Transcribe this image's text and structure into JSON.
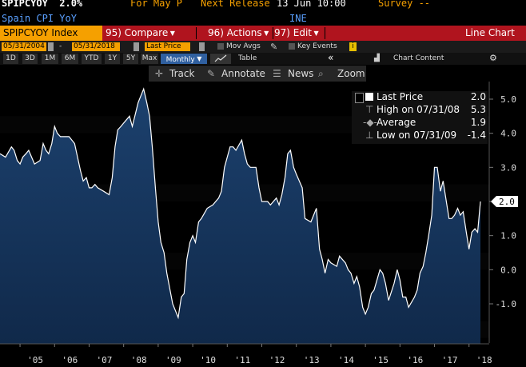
{
  "header": {
    "ticker": "SPIPCYOY",
    "last_value": "2.0%",
    "for_label": "For May P",
    "next_release_label": "Next Release",
    "next_release_date": "13 Jun 10:00",
    "survey_label": "Survey --",
    "name": "Spain CPI YoY",
    "source": "INE"
  },
  "function_bar": {
    "security": "SPIPCYOY Index",
    "compare": "95) Compare",
    "actions": "96) Actions",
    "edit": "97) Edit",
    "chart_type": "Line Chart"
  },
  "date_bar": {
    "start_date": "05/31/2004",
    "dash": "-",
    "end_date": "05/31/2018",
    "field": "Last Price",
    "mov_avgs": "Mov Avgs",
    "key_events": "Key Events"
  },
  "period_bar": {
    "periods": [
      "1D",
      "3D",
      "1M",
      "6M",
      "YTD",
      "1Y",
      "5Y",
      "Max"
    ],
    "frequency": "Monthly",
    "table": "Table",
    "collapse": "«",
    "chart_content": "Chart Content",
    "settings_icon": "gear-icon"
  },
  "toolbar": {
    "track": "Track",
    "annotate": "Annotate",
    "news": "News",
    "zoom": "Zoom"
  },
  "legend": {
    "rows": [
      {
        "name": "Last Price",
        "value": "2.0"
      },
      {
        "name": "High on 07/31/08",
        "value": "5.3"
      },
      {
        "name": "Average",
        "value": "1.9"
      },
      {
        "name": "Low on 07/31/09",
        "value": "-1.4"
      }
    ]
  },
  "colors": {
    "accent": "#f5a000",
    "function_bar": "#b0141e",
    "series_line": "#ffffff",
    "area_fill": "#15365f"
  },
  "chart_data": {
    "type": "area",
    "x_ticks": [
      "'05",
      "'06",
      "'07",
      "'08",
      "'09",
      "'10",
      "'11",
      "'12",
      "'13",
      "'14",
      "'15",
      "'16",
      "'17",
      "'18"
    ],
    "y_ticks": [
      "5.0",
      "4.0",
      "3.0",
      "2.0",
      "1.0",
      "0.0",
      "-1.0"
    ],
    "ylim": [
      -2.0,
      5.6
    ],
    "last_value_label": "2.0",
    "grid": false,
    "series": [
      {
        "values": [
          [
            2004.42,
            3.4
          ],
          [
            2004.58,
            3.3
          ],
          [
            2004.75,
            3.6
          ],
          [
            2004.83,
            3.5
          ],
          [
            2004.92,
            3.2
          ],
          [
            2005.0,
            3.1
          ],
          [
            2005.08,
            3.3
          ],
          [
            2005.17,
            3.4
          ],
          [
            2005.25,
            3.5
          ],
          [
            2005.42,
            3.1
          ],
          [
            2005.58,
            3.2
          ],
          [
            2005.67,
            3.7
          ],
          [
            2005.75,
            3.5
          ],
          [
            2005.83,
            3.4
          ],
          [
            2005.92,
            3.7
          ],
          [
            2006.0,
            4.2
          ],
          [
            2006.08,
            4.0
          ],
          [
            2006.17,
            3.9
          ],
          [
            2006.25,
            3.9
          ],
          [
            2006.42,
            3.9
          ],
          [
            2006.58,
            3.7
          ],
          [
            2006.75,
            2.9
          ],
          [
            2006.83,
            2.6
          ],
          [
            2006.92,
            2.7
          ],
          [
            2007.0,
            2.4
          ],
          [
            2007.08,
            2.4
          ],
          [
            2007.17,
            2.5
          ],
          [
            2007.25,
            2.4
          ],
          [
            2007.42,
            2.3
          ],
          [
            2007.58,
            2.2
          ],
          [
            2007.67,
            2.7
          ],
          [
            2007.75,
            3.6
          ],
          [
            2007.83,
            4.1
          ],
          [
            2007.92,
            4.2
          ],
          [
            2008.0,
            4.3
          ],
          [
            2008.17,
            4.5
          ],
          [
            2008.25,
            4.2
          ],
          [
            2008.42,
            4.9
          ],
          [
            2008.58,
            5.3
          ],
          [
            2008.67,
            4.9
          ],
          [
            2008.75,
            4.5
          ],
          [
            2008.83,
            3.6
          ],
          [
            2008.92,
            2.4
          ],
          [
            2009.0,
            1.4
          ],
          [
            2009.08,
            0.8
          ],
          [
            2009.17,
            0.5
          ],
          [
            2009.25,
            -0.1
          ],
          [
            2009.42,
            -1.0
          ],
          [
            2009.58,
            -1.4
          ],
          [
            2009.67,
            -0.8
          ],
          [
            2009.75,
            -0.7
          ],
          [
            2009.83,
            0.3
          ],
          [
            2009.92,
            0.8
          ],
          [
            2010.0,
            1.0
          ],
          [
            2010.08,
            0.8
          ],
          [
            2010.17,
            1.4
          ],
          [
            2010.25,
            1.5
          ],
          [
            2010.42,
            1.8
          ],
          [
            2010.58,
            1.9
          ],
          [
            2010.75,
            2.1
          ],
          [
            2010.83,
            2.3
          ],
          [
            2010.92,
            3.0
          ],
          [
            2011.0,
            3.3
          ],
          [
            2011.08,
            3.6
          ],
          [
            2011.17,
            3.6
          ],
          [
            2011.25,
            3.5
          ],
          [
            2011.42,
            3.8
          ],
          [
            2011.5,
            3.4
          ],
          [
            2011.58,
            3.1
          ],
          [
            2011.67,
            3.0
          ],
          [
            2011.83,
            3.0
          ],
          [
            2011.92,
            2.4
          ],
          [
            2012.0,
            2.0
          ],
          [
            2012.17,
            2.0
          ],
          [
            2012.25,
            1.9
          ],
          [
            2012.42,
            2.1
          ],
          [
            2012.5,
            1.9
          ],
          [
            2012.58,
            2.2
          ],
          [
            2012.67,
            2.7
          ],
          [
            2012.75,
            3.4
          ],
          [
            2012.83,
            3.5
          ],
          [
            2012.92,
            3.0
          ],
          [
            2013.0,
            2.8
          ],
          [
            2013.17,
            2.4
          ],
          [
            2013.25,
            1.5
          ],
          [
            2013.42,
            1.4
          ],
          [
            2013.58,
            1.8
          ],
          [
            2013.67,
            0.6
          ],
          [
            2013.75,
            0.3
          ],
          [
            2013.83,
            -0.1
          ],
          [
            2013.92,
            0.3
          ],
          [
            2014.0,
            0.2
          ],
          [
            2014.17,
            0.1
          ],
          [
            2014.25,
            0.4
          ],
          [
            2014.42,
            0.2
          ],
          [
            2014.5,
            0.0
          ],
          [
            2014.58,
            -0.1
          ],
          [
            2014.67,
            -0.4
          ],
          [
            2014.75,
            -0.2
          ],
          [
            2014.83,
            -0.5
          ],
          [
            2014.92,
            -1.1
          ],
          [
            2015.0,
            -1.3
          ],
          [
            2015.08,
            -1.1
          ],
          [
            2015.17,
            -0.7
          ],
          [
            2015.25,
            -0.6
          ],
          [
            2015.42,
            0.0
          ],
          [
            2015.5,
            -0.1
          ],
          [
            2015.58,
            -0.4
          ],
          [
            2015.67,
            -0.9
          ],
          [
            2015.83,
            -0.4
          ],
          [
            2015.92,
            0.0
          ],
          [
            2016.0,
            -0.3
          ],
          [
            2016.08,
            -0.8
          ],
          [
            2016.17,
            -0.8
          ],
          [
            2016.25,
            -1.1
          ],
          [
            2016.42,
            -0.8
          ],
          [
            2016.5,
            -0.6
          ],
          [
            2016.58,
            -0.1
          ],
          [
            2016.67,
            0.1
          ],
          [
            2016.75,
            0.5
          ],
          [
            2016.83,
            1.0
          ],
          [
            2016.92,
            1.6
          ],
          [
            2017.0,
            3.0
          ],
          [
            2017.08,
            3.0
          ],
          [
            2017.17,
            2.3
          ],
          [
            2017.25,
            2.6
          ],
          [
            2017.42,
            1.5
          ],
          [
            2017.5,
            1.5
          ],
          [
            2017.58,
            1.6
          ],
          [
            2017.67,
            1.8
          ],
          [
            2017.75,
            1.6
          ],
          [
            2017.83,
            1.7
          ],
          [
            2017.92,
            1.1
          ],
          [
            2018.0,
            0.6
          ],
          [
            2018.08,
            1.1
          ],
          [
            2018.17,
            1.2
          ],
          [
            2018.25,
            1.1
          ],
          [
            2018.33,
            2.0
          ]
        ]
      }
    ]
  }
}
